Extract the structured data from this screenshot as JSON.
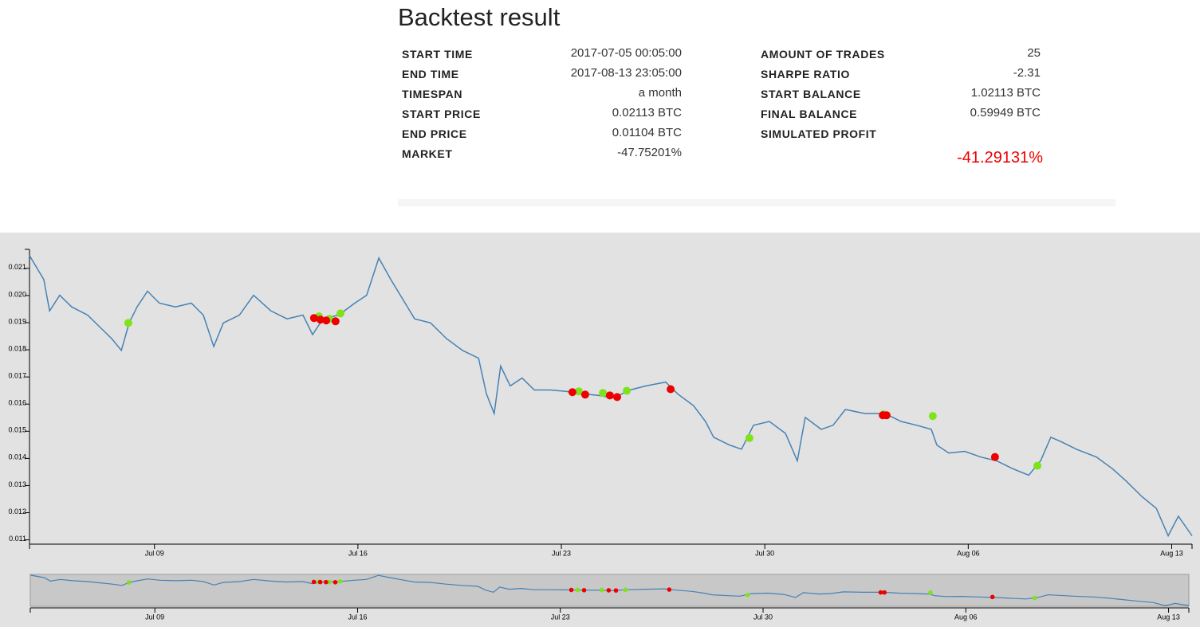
{
  "header": {
    "title": "Backtest result"
  },
  "stats": {
    "left": [
      {
        "label": "START TIME",
        "value": "2017-07-05 00:05:00"
      },
      {
        "label": "END TIME",
        "value": "2017-08-13 23:05:00"
      },
      {
        "label": "TIMESPAN",
        "value": "a month"
      },
      {
        "label": "START PRICE",
        "value": "0.02113 BTC"
      },
      {
        "label": "END PRICE",
        "value": "0.01104 BTC"
      },
      {
        "label": "MARKET",
        "value": "-47.75201%"
      }
    ],
    "right": [
      {
        "label": "AMOUNT OF TRADES",
        "value": "25"
      },
      {
        "label": "SHARPE RATIO",
        "value": "-2.31"
      },
      {
        "label": "START BALANCE",
        "value": "1.02113 BTC"
      },
      {
        "label": "FINAL BALANCE",
        "value": "0.59949 BTC"
      },
      {
        "label": "SIMULATED PROFIT"
      }
    ],
    "profit": "-41.29131%"
  },
  "chart_data": {
    "type": "line",
    "xlim": [
      4.7,
      44.7
    ],
    "ylim": [
      0.0109,
      0.0217
    ],
    "xticks": [
      {
        "value": 9,
        "label": "Jul 09"
      },
      {
        "value": 16,
        "label": "Jul 16"
      },
      {
        "value": 23,
        "label": "Jul 23"
      },
      {
        "value": 30,
        "label": "Jul 30"
      },
      {
        "value": 37,
        "label": "Aug 06"
      },
      {
        "value": 44,
        "label": "Aug 13"
      }
    ],
    "yticks": [
      0.011,
      0.012,
      0.013,
      0.014,
      0.015,
      0.016,
      0.017,
      0.018,
      0.019,
      {
        "value": 0.02,
        "label": "0.020"
      },
      0.021
    ],
    "series": [
      {
        "type": "line",
        "color": "#4682b4",
        "x": [
          4.7,
          5.19,
          5.39,
          5.74,
          6.15,
          6.7,
          7.11,
          7.53,
          7.86,
          8.13,
          8.4,
          8.76,
          9.17,
          9.72,
          10.27,
          10.68,
          11.04,
          11.37,
          11.92,
          12.41,
          13.01,
          13.56,
          14.11,
          14.44,
          14.8,
          15.34,
          15.89,
          16.3,
          16.72,
          17.13,
          17.54,
          17.95,
          18.5,
          19.05,
          19.6,
          20.15,
          20.42,
          20.69,
          20.91,
          21.24,
          21.65,
          22.07,
          22.61,
          23.16,
          23.71,
          24.26,
          24.81,
          25.36,
          25.91,
          26.59,
          27.0,
          27.55,
          27.96,
          28.24,
          28.79,
          29.2,
          29.61,
          30.16,
          30.71,
          31.12,
          31.39,
          31.94,
          32.35,
          32.77,
          33.45,
          34.14,
          34.69,
          35.23,
          35.73,
          35.92,
          36.33,
          36.88,
          37.43,
          37.98,
          38.53,
          39.08,
          39.49,
          39.84,
          40.17,
          40.72,
          41.41,
          41.96,
          42.42,
          42.97,
          43.47,
          43.88,
          44.23,
          44.7
        ],
        "values": [
          0.02147,
          0.02059,
          0.01943,
          0.02001,
          0.01958,
          0.01928,
          0.01885,
          0.01841,
          0.01798,
          0.01899,
          0.01958,
          0.02016,
          0.01972,
          0.01958,
          0.01972,
          0.01928,
          0.01812,
          0.01899,
          0.01928,
          0.02001,
          0.01943,
          0.01914,
          0.01928,
          0.01856,
          0.01914,
          0.01928,
          0.01972,
          0.02001,
          0.02138,
          0.02059,
          0.01987,
          0.01914,
          0.01899,
          0.01841,
          0.01798,
          0.01769,
          0.01638,
          0.01565,
          0.0174,
          0.01667,
          0.01696,
          0.01652,
          0.01652,
          0.01647,
          0.01638,
          0.01632,
          0.01623,
          0.01652,
          0.01667,
          0.01681,
          0.01638,
          0.01594,
          0.01536,
          0.01478,
          0.01449,
          0.01434,
          0.01522,
          0.01536,
          0.01492,
          0.01391,
          0.01551,
          0.01507,
          0.01522,
          0.0158,
          0.01565,
          0.01565,
          0.01536,
          0.01522,
          0.01507,
          0.01449,
          0.0142,
          0.01426,
          0.01405,
          0.01391,
          0.01362,
          0.01338,
          0.01391,
          0.01478,
          0.01463,
          0.01434,
          0.01405,
          0.01362,
          0.01318,
          0.0126,
          0.01216,
          0.01115,
          0.01187,
          0.01115
        ]
      },
      {
        "type": "scatter",
        "color": "#7ee31a",
        "x": [
          8.1,
          14.66,
          15.02,
          15.4,
          23.6,
          24.43,
          25.25,
          29.47,
          34.08,
          35.78,
          39.38
        ],
        "values": [
          0.01899,
          0.01923,
          0.01914,
          0.01934,
          0.01647,
          0.01641,
          0.01649,
          0.01475,
          0.01562,
          0.01556,
          0.01373
        ]
      },
      {
        "type": "scatter",
        "color": "#ee0000",
        "x": [
          14.49,
          14.71,
          14.91,
          15.23,
          23.38,
          23.82,
          24.67,
          24.92,
          26.76,
          34.06,
          34.19,
          37.92
        ],
        "values": [
          0.01917,
          0.01911,
          0.01908,
          0.01905,
          0.01644,
          0.01635,
          0.01632,
          0.01626,
          0.01655,
          0.01559,
          0.01559,
          0.01405
        ]
      }
    ]
  }
}
